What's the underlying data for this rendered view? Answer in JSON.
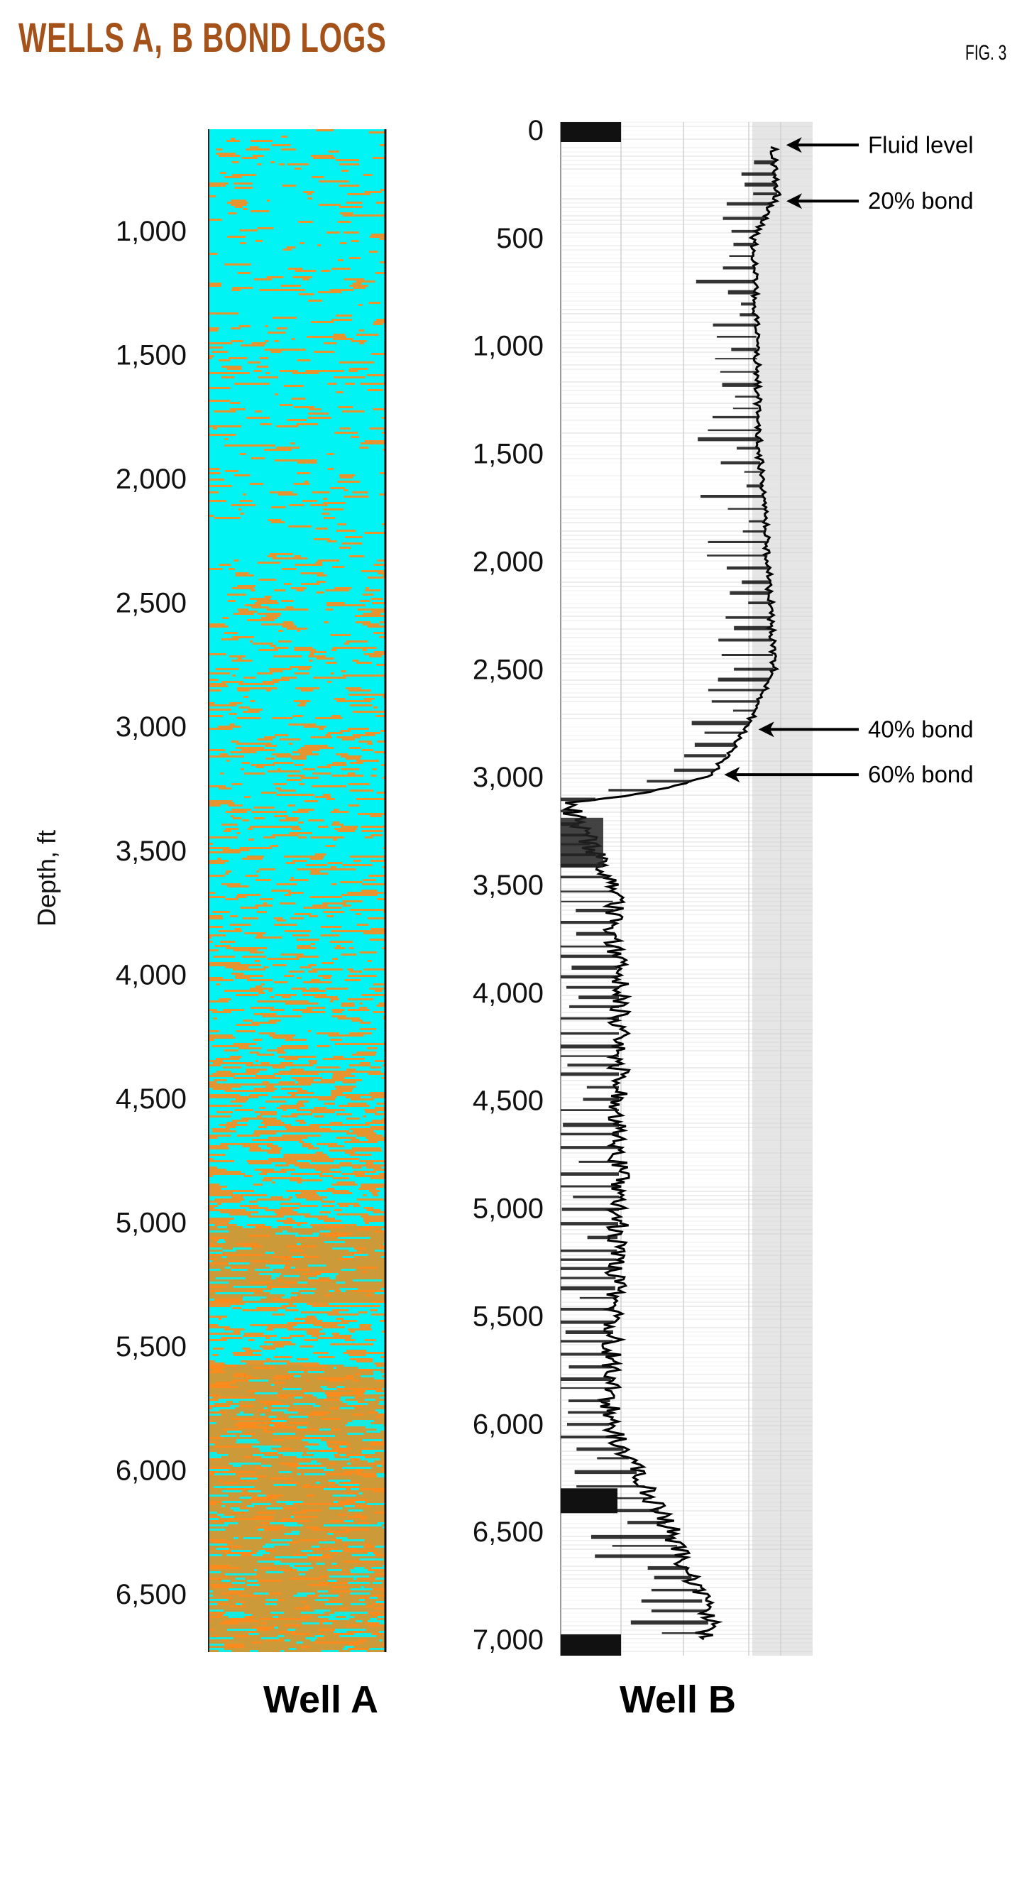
{
  "header": {
    "title": "WELLS A, B BOND LOGS",
    "figure_label": "FIG. 3"
  },
  "chart_data": {
    "type": "log-track",
    "title": "WELLS A, B BOND LOGS",
    "ylabel": "Depth, ft",
    "colors": {
      "title": "#a4521a",
      "wellA_bonded": "#00f4f4",
      "wellA_unbonded": "#ff8a1a",
      "wellA_partial": "#cc9a38",
      "wellB_trace": "#000000"
    },
    "tracks": [
      {
        "name": "Well A",
        "type": "cement bond map",
        "ylim": [
          590,
          6735
        ],
        "y_ticks": [
          1000,
          1500,
          2000,
          2500,
          3000,
          3500,
          4000,
          4500,
          5000,
          5500,
          6000,
          6500
        ],
        "y_tick_labels": [
          "1,000",
          "1,500",
          "2,000",
          "2,500",
          "3,000",
          "3,500",
          "4,000",
          "4,500",
          "5,000",
          "5,500",
          "6,000",
          "6,500"
        ]
      },
      {
        "name": "Well B",
        "type": "amplitude log",
        "ylim": [
          0,
          7050
        ],
        "y_ticks": [
          0,
          500,
          1000,
          1500,
          2000,
          2500,
          3000,
          3500,
          4000,
          4500,
          5000,
          5500,
          6000,
          6500,
          7000
        ],
        "y_tick_labels": [
          "0",
          "500",
          "1,000",
          "1,500",
          "2,000",
          "2,500",
          "3,000",
          "3,500",
          "4,000",
          "4,500",
          "5,000",
          "5,500",
          "6,000",
          "6,500",
          "7,000"
        ],
        "annotations": [
          {
            "text": "Fluid level",
            "depth": 70
          },
          {
            "text": "20% bond",
            "depth": 330
          },
          {
            "text": "40% bond",
            "depth": 2780
          },
          {
            "text": "60% bond",
            "depth": 2990
          }
        ]
      }
    ]
  }
}
